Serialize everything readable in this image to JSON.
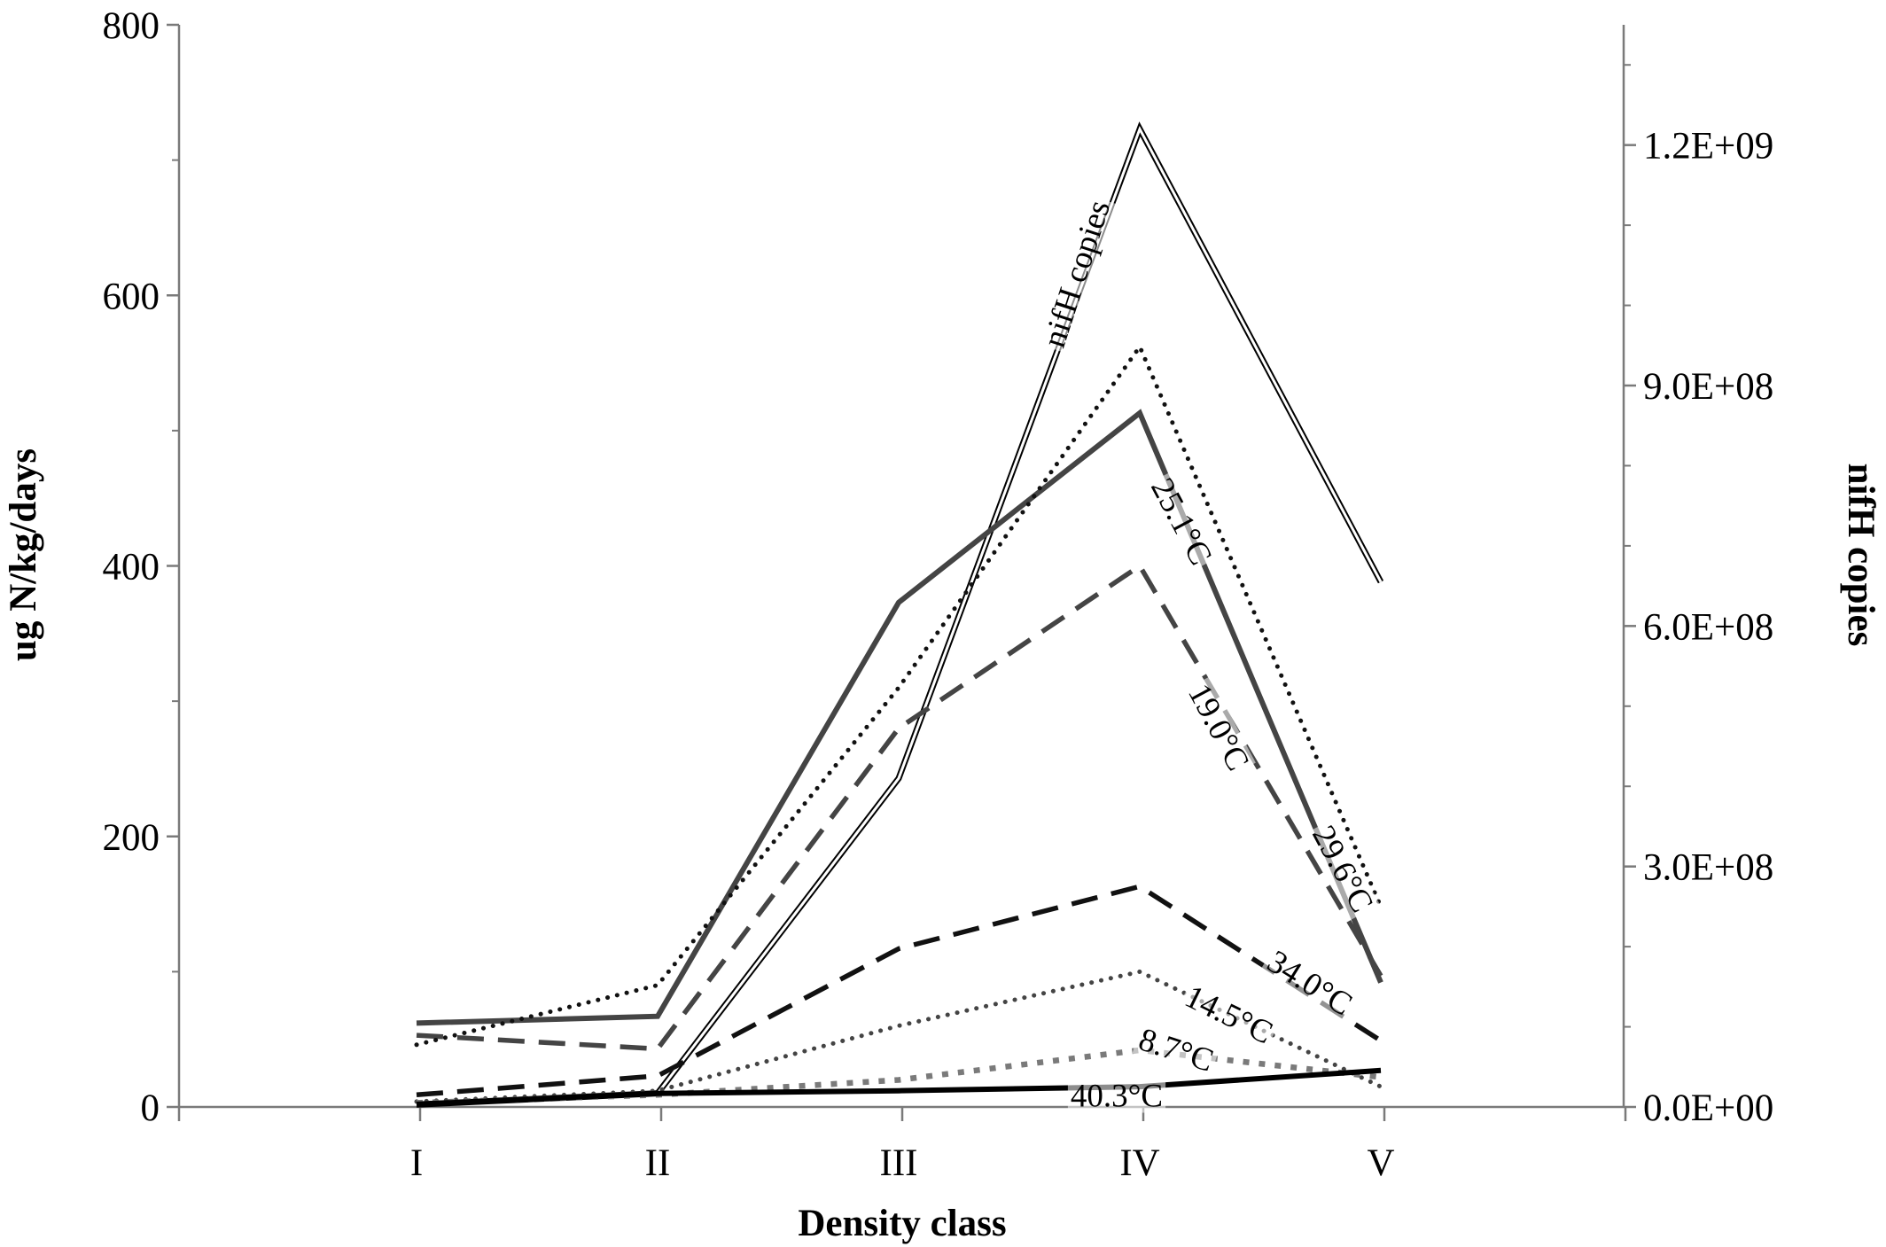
{
  "chart_data": {
    "type": "line",
    "title": "",
    "xlabel": "Density class",
    "ylabel": "ug N/kg/days",
    "y2label": "nifH copies",
    "categories": [
      "I",
      "II",
      "III",
      "IV",
      "V"
    ],
    "ylim": [
      0,
      800
    ],
    "yticks": [
      "0",
      "200",
      "400",
      "600",
      "800"
    ],
    "y2lim": [
      0,
      1350000000
    ],
    "y2ticks": [
      "0.0E+00",
      "3.0E+08",
      "6.0E+08",
      "9.0E+08",
      "1.2E+09"
    ],
    "grid": false,
    "legend": "none (series labelled inline)",
    "series": [
      {
        "name": "nifH copies",
        "axis": "right",
        "style": "double-line",
        "color": "#000000",
        "values": [
          3000000,
          17000000,
          410000000,
          1220000000,
          655000000
        ]
      },
      {
        "name": "29.6°C",
        "axis": "left",
        "style": "dotted",
        "color": "#111111",
        "values": [
          46,
          90,
          310,
          562,
          148
        ]
      },
      {
        "name": "25.1°C",
        "axis": "left",
        "style": "solid",
        "color": "#444444",
        "values": [
          62,
          67,
          373,
          513,
          92
        ]
      },
      {
        "name": "19.0°C",
        "axis": "left",
        "style": "dashed",
        "color": "#444444",
        "values": [
          53,
          43,
          280,
          400,
          97
        ]
      },
      {
        "name": "34.0°C",
        "axis": "left",
        "style": "dashed",
        "color": "#111111",
        "values": [
          9,
          23,
          117,
          163,
          49
        ]
      },
      {
        "name": "14.5°C",
        "axis": "left",
        "style": "dotted",
        "color": "#444444",
        "values": [
          4,
          12,
          60,
          100,
          15
        ]
      },
      {
        "name": "8.7°C",
        "axis": "left",
        "style": "dotted-thick",
        "color": "#7a7a7a",
        "values": [
          3,
          9,
          20,
          42,
          22
        ]
      },
      {
        "name": "40.3°C",
        "axis": "left",
        "style": "solid-thick",
        "color": "#000000",
        "values": [
          2,
          10,
          12,
          15,
          27
        ]
      }
    ]
  }
}
